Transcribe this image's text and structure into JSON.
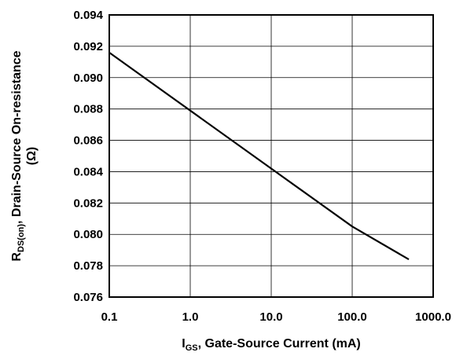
{
  "chart_data": {
    "type": "line",
    "title": "",
    "xlabel": {
      "main": "I",
      "sub": "GS",
      "rest": ", Gate-Source Current (mA)"
    },
    "ylabel": {
      "line1_main": "R",
      "line1_sub": "DS(on)",
      "line1_rest": ", Drain-Source On-resistance",
      "line2": "(Ω)"
    },
    "xscale": "log",
    "xlim": [
      0.1,
      1000
    ],
    "ylim": [
      0.076,
      0.094
    ],
    "xticks": [
      0.1,
      1,
      10,
      100,
      1000
    ],
    "xtick_labels": [
      "0.1",
      "1.0",
      "10.0",
      "100.0",
      "1000.0"
    ],
    "yticks": [
      0.076,
      0.078,
      0.08,
      0.082,
      0.084,
      0.086,
      0.088,
      0.09,
      0.092,
      0.094
    ],
    "ytick_labels": [
      "0.076",
      "0.078",
      "0.080",
      "0.082",
      "0.084",
      "0.086",
      "0.088",
      "0.090",
      "0.092",
      "0.094"
    ],
    "grid": true,
    "legend": "none",
    "series": [
      {
        "color": "#000000",
        "x": [
          0.1,
          1,
          10,
          100,
          500
        ],
        "y": [
          0.0916,
          0.0879,
          0.0842,
          0.0805,
          0.0784
        ]
      }
    ]
  }
}
